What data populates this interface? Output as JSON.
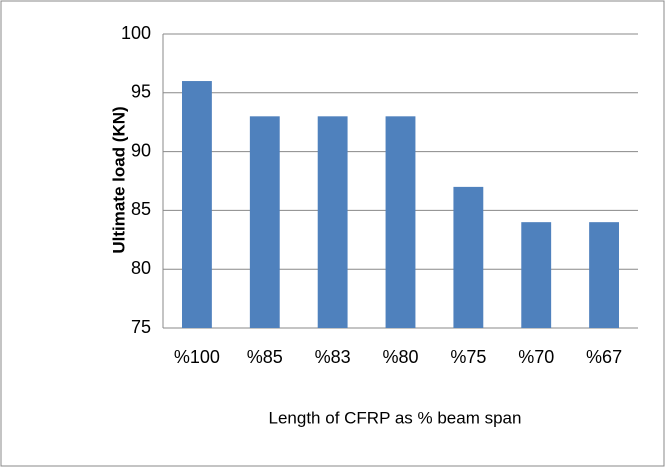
{
  "chart_data": {
    "type": "bar",
    "categories": [
      "%100",
      "%85",
      "%83",
      "%80",
      "%75",
      "%70",
      "%67"
    ],
    "values": [
      96,
      93,
      93,
      93,
      87,
      84,
      84
    ],
    "color": "#4f81bd",
    "xlabel": "Length of CFRP as % beam span",
    "ylabel": "Ultimate load (KN)",
    "ylim": [
      75,
      100
    ],
    "yticks": [
      75,
      80,
      85,
      90,
      95,
      100
    ],
    "grid": true
  }
}
